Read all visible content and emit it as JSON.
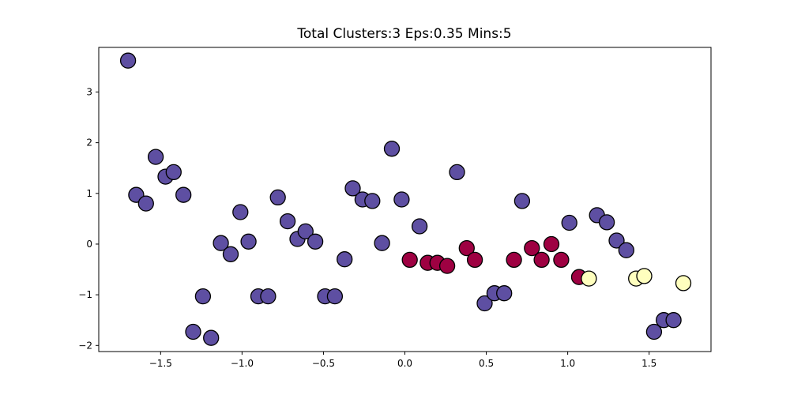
{
  "chart_data": {
    "type": "scatter",
    "title": "Total Clusters:3 Eps:0.35 Mins:5",
    "xlabel": "",
    "ylabel": "",
    "xlim": [
      -1.88,
      1.88
    ],
    "ylim": [
      -2.12,
      3.88
    ],
    "xticks": [
      -1.5,
      -1.0,
      -0.5,
      0.0,
      0.5,
      1.0,
      1.5
    ],
    "xtick_labels": [
      "−1.5",
      "−1.0",
      "−0.5",
      "0.0",
      "0.5",
      "1.0",
      "1.5"
    ],
    "yticks": [
      -2,
      -1,
      0,
      1,
      2,
      3
    ],
    "ytick_labels": [
      "−2",
      "−1",
      "0",
      "1",
      "2",
      "3"
    ],
    "grid": false,
    "series": [
      {
        "color": "#5e4fa2",
        "points": [
          [
            -1.7,
            3.62
          ],
          [
            -1.65,
            0.97
          ],
          [
            -1.59,
            0.8
          ],
          [
            -1.53,
            1.72
          ],
          [
            -1.47,
            1.33
          ],
          [
            -1.42,
            1.42
          ],
          [
            -1.36,
            0.97
          ],
          [
            -1.3,
            -1.73
          ],
          [
            -1.24,
            -1.03
          ],
          [
            -1.19,
            -1.85
          ],
          [
            -1.13,
            0.02
          ],
          [
            -1.07,
            -0.2
          ],
          [
            -1.01,
            0.63
          ],
          [
            -0.96,
            0.05
          ],
          [
            -0.9,
            -1.03
          ],
          [
            -0.84,
            -1.03
          ],
          [
            -0.78,
            0.92
          ],
          [
            -0.72,
            0.45
          ],
          [
            -0.66,
            0.1
          ],
          [
            -0.61,
            0.25
          ],
          [
            -0.55,
            0.05
          ],
          [
            -0.49,
            -1.03
          ],
          [
            -0.43,
            -1.03
          ],
          [
            -0.37,
            -0.3
          ],
          [
            -0.32,
            1.1
          ],
          [
            -0.26,
            0.88
          ],
          [
            -0.2,
            0.85
          ],
          [
            -0.14,
            0.02
          ],
          [
            -0.08,
            1.88
          ],
          [
            -0.02,
            0.88
          ],
          [
            0.09,
            0.35
          ],
          [
            0.32,
            1.42
          ],
          [
            0.49,
            -1.17
          ],
          [
            0.55,
            -0.97
          ],
          [
            0.61,
            -0.97
          ],
          [
            0.72,
            0.85
          ],
          [
            1.01,
            0.42
          ],
          [
            1.18,
            0.57
          ],
          [
            1.24,
            0.43
          ],
          [
            1.3,
            0.07
          ],
          [
            1.36,
            -0.12
          ],
          [
            1.53,
            -1.73
          ],
          [
            1.59,
            -1.5
          ],
          [
            1.65,
            -1.5
          ]
        ]
      },
      {
        "color": "#9e0142",
        "points": [
          [
            0.03,
            -0.31
          ],
          [
            0.14,
            -0.37
          ],
          [
            0.2,
            -0.37
          ],
          [
            0.26,
            -0.43
          ],
          [
            0.38,
            -0.08
          ],
          [
            0.43,
            -0.31
          ],
          [
            0.67,
            -0.31
          ],
          [
            0.78,
            -0.08
          ],
          [
            0.84,
            -0.31
          ],
          [
            0.9,
            0.0
          ],
          [
            0.96,
            -0.31
          ],
          [
            1.07,
            -0.65
          ]
        ]
      },
      {
        "color": "#ffffbe",
        "points": [
          [
            1.13,
            -0.68
          ],
          [
            1.42,
            -0.68
          ],
          [
            1.47,
            -0.63
          ],
          [
            1.71,
            -0.77
          ]
        ]
      }
    ]
  }
}
